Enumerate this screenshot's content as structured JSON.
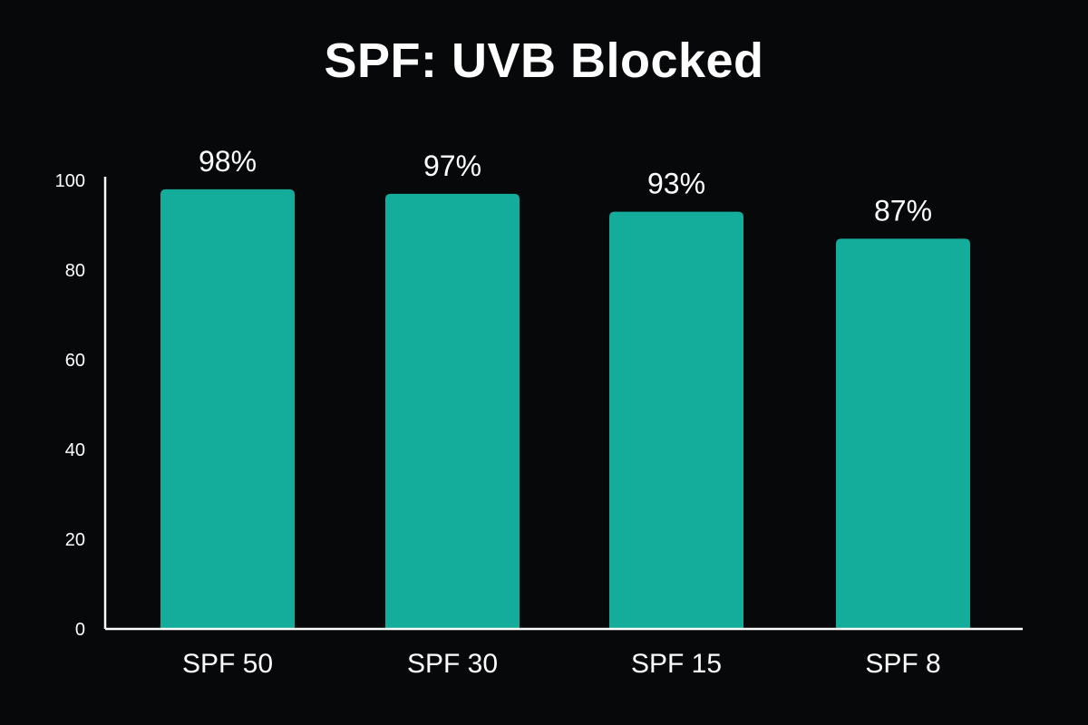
{
  "chart_data": {
    "type": "bar",
    "title": "SPF: UVB Blocked",
    "xlabel": "",
    "ylabel": "",
    "categories": [
      "SPF 50",
      "SPF 30",
      "SPF 15",
      "SPF 8"
    ],
    "values": [
      98,
      97,
      93,
      87
    ],
    "data_labels": [
      "98%",
      "97%",
      "93%",
      "87%"
    ],
    "ylim": [
      0,
      100
    ],
    "yticks": [
      0,
      20,
      40,
      60,
      80,
      100
    ],
    "grid": false,
    "legend": "none",
    "colors": {
      "background": "#07080a",
      "bar": "#14ad9b",
      "text": "#ffffff",
      "axis": "#ffffff"
    }
  }
}
